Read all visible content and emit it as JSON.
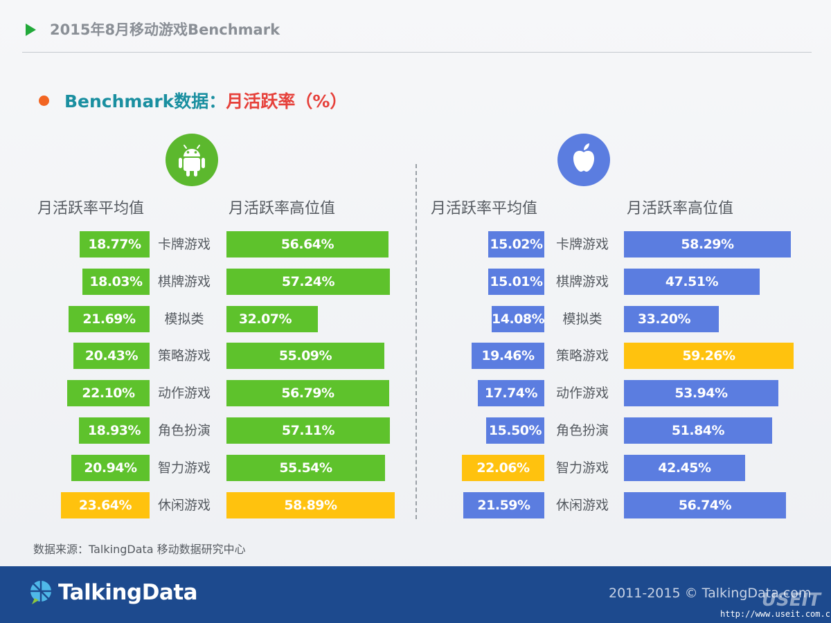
{
  "header": {
    "title": "2015年8月移动游戏Benchmark"
  },
  "section": {
    "title_prefix": "Benchmark数据：",
    "title_metric": "月活跃率（%）"
  },
  "icons": {
    "left_platform": "android-icon",
    "right_platform": "apple-icon",
    "bullet": "bullet-dot",
    "header_marker": "play-icon"
  },
  "colors": {
    "android": "#5ec22c",
    "ios": "#5b7de0",
    "highlight": "#ffc20e"
  },
  "chart_data": [
    {
      "type": "bar",
      "platform": "Android",
      "categories": [
        "卡牌游戏",
        "棋牌游戏",
        "模拟类",
        "策略游戏",
        "动作游戏",
        "角色扮演",
        "智力游戏",
        "休闲游戏"
      ],
      "series": [
        {
          "name": "月活跃率平均值",
          "values": [
            18.77,
            18.03,
            21.69,
            20.43,
            22.1,
            18.93,
            20.94,
            23.64
          ],
          "labels": [
            "18.77%",
            "18.03%",
            "21.69%",
            "20.43%",
            "22.10%",
            "18.93%",
            "20.94%",
            "23.64%"
          ],
          "highlight_index": 7
        },
        {
          "name": "月活跃率高位值",
          "values": [
            56.64,
            57.24,
            32.07,
            55.09,
            56.79,
            57.11,
            55.54,
            58.89
          ],
          "labels": [
            "56.64%",
            "57.24%",
            "32.07%",
            "55.09%",
            "56.79%",
            "57.11%",
            "55.54%",
            "58.89%"
          ],
          "highlight_index": 7
        }
      ]
    },
    {
      "type": "bar",
      "platform": "iOS",
      "categories": [
        "卡牌游戏",
        "棋牌游戏",
        "模拟类",
        "策略游戏",
        "动作游戏",
        "角色扮演",
        "智力游戏",
        "休闲游戏"
      ],
      "series": [
        {
          "name": "月活跃率平均值",
          "values": [
            15.02,
            15.01,
            14.08,
            19.46,
            17.74,
            15.5,
            22.06,
            21.59
          ],
          "labels": [
            "15.02%",
            "15.01%",
            "14.08%",
            "19.46%",
            "17.74%",
            "15.50%",
            "22.06%",
            "21.59%"
          ],
          "highlight_index": 6
        },
        {
          "name": "月活跃率高位值",
          "values": [
            58.29,
            47.51,
            33.2,
            59.26,
            53.94,
            51.84,
            42.45,
            56.74
          ],
          "labels": [
            "58.29%",
            "47.51%",
            "33.20%",
            "59.26%",
            "53.94%",
            "51.84%",
            "42.45%",
            "56.74%"
          ],
          "highlight_index": 3
        }
      ]
    }
  ],
  "source_note": "数据来源：TalkingData 移动数据研究中心",
  "footer": {
    "brand": "TalkingData",
    "copyright": "2011-2015 © TalkingData.com",
    "watermark": "USEIT",
    "watermark_url": "http://www.useit.com.cn"
  }
}
